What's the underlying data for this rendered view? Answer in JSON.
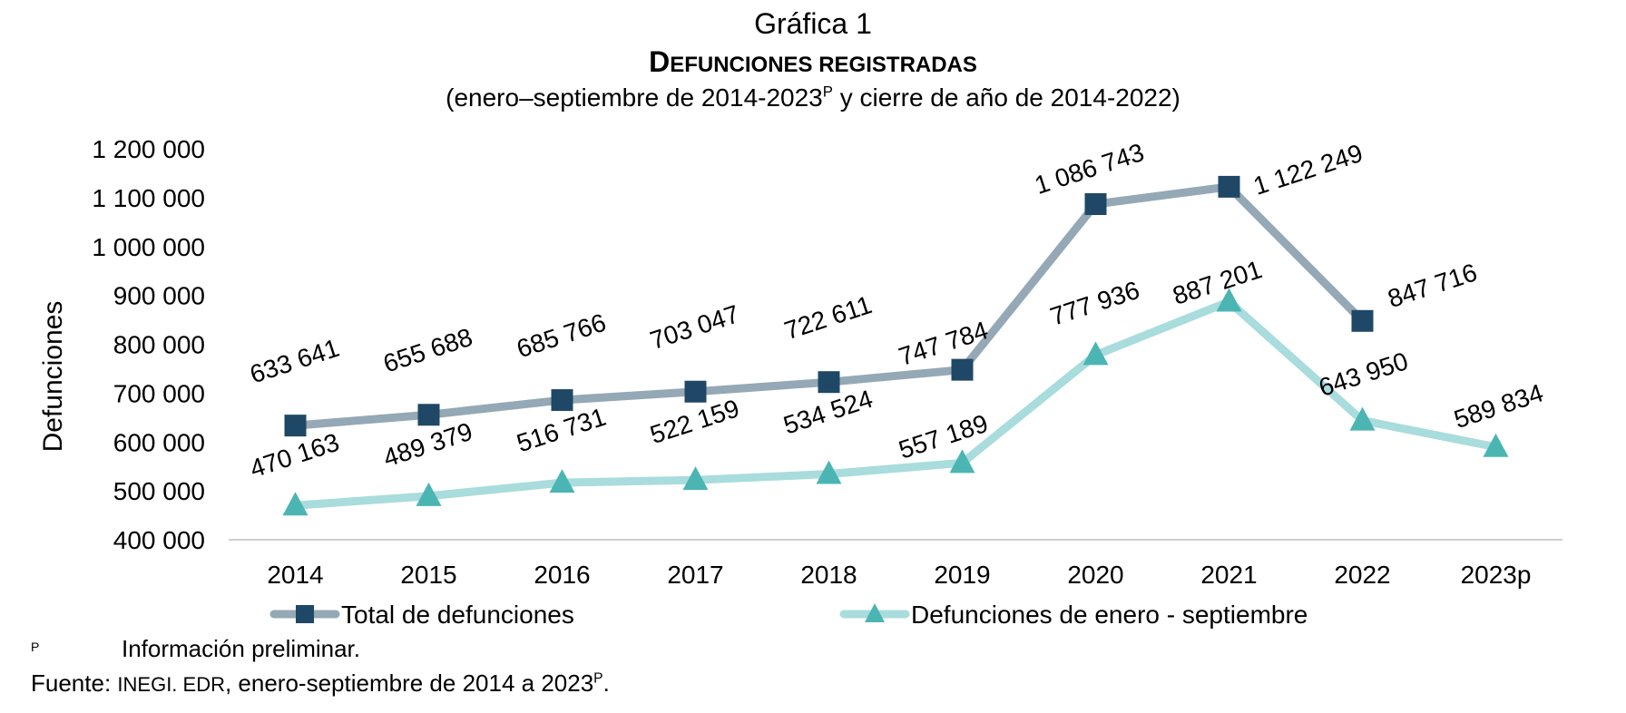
{
  "header": {
    "chart_number": "Gráfica 1",
    "title_first": "D",
    "title_rest": "EFUNCIONES REGISTRADAS",
    "subtitle_pre": "(enero–septiembre de 2014-2023",
    "subtitle_sup": "P",
    "subtitle_post": " y cierre de año de 2014-2022)"
  },
  "footnote": {
    "mark": "P",
    "text": "Información preliminar."
  },
  "source": {
    "label": "Fuente:",
    "org": "INEGI. EDR",
    "text": ", enero-septiembre de 2014 a 2023",
    "sup": "P",
    "end": "."
  },
  "chart_data": {
    "type": "line",
    "ylabel": "Defunciones",
    "xlabel": "",
    "ylim": [
      400000,
      1200000
    ],
    "yticks": [
      400000,
      500000,
      600000,
      700000,
      800000,
      900000,
      1000000,
      1100000,
      1200000
    ],
    "ytick_labels": [
      "400 000",
      "500 000",
      "600 000",
      "700 000",
      "800 000",
      "900 000",
      "1 000 000",
      "1 100 000",
      "1 200 000"
    ],
    "categories": [
      "2014",
      "2015",
      "2016",
      "2017",
      "2018",
      "2019",
      "2020",
      "2021",
      "2022",
      "2023p"
    ],
    "legend_position": "bottom",
    "grid": false,
    "series": [
      {
        "name": "Total de defunciones",
        "color": "#94a8b5",
        "marker_color": "#1f4866",
        "marker": "square",
        "values": [
          633641,
          655688,
          685766,
          703047,
          722611,
          747784,
          1086743,
          1122249,
          847716,
          null
        ],
        "labels": [
          "633 641",
          "655 688",
          "685 766",
          "703 047",
          "722 611",
          "747 784",
          "1 086 743",
          "1 122 249",
          "847 716",
          ""
        ]
      },
      {
        "name": "Defunciones de enero - septiembre",
        "color": "#a9dcdc",
        "marker_color": "#4bb5b4",
        "marker": "triangle",
        "values": [
          470163,
          489379,
          516731,
          522159,
          534524,
          557189,
          777936,
          887201,
          643950,
          589834
        ],
        "labels": [
          "470 163",
          "489 379",
          "516 731",
          "522 159",
          "534 524",
          "557 189",
          "777 936",
          "887 201",
          "643 950",
          "589 834"
        ]
      }
    ]
  }
}
